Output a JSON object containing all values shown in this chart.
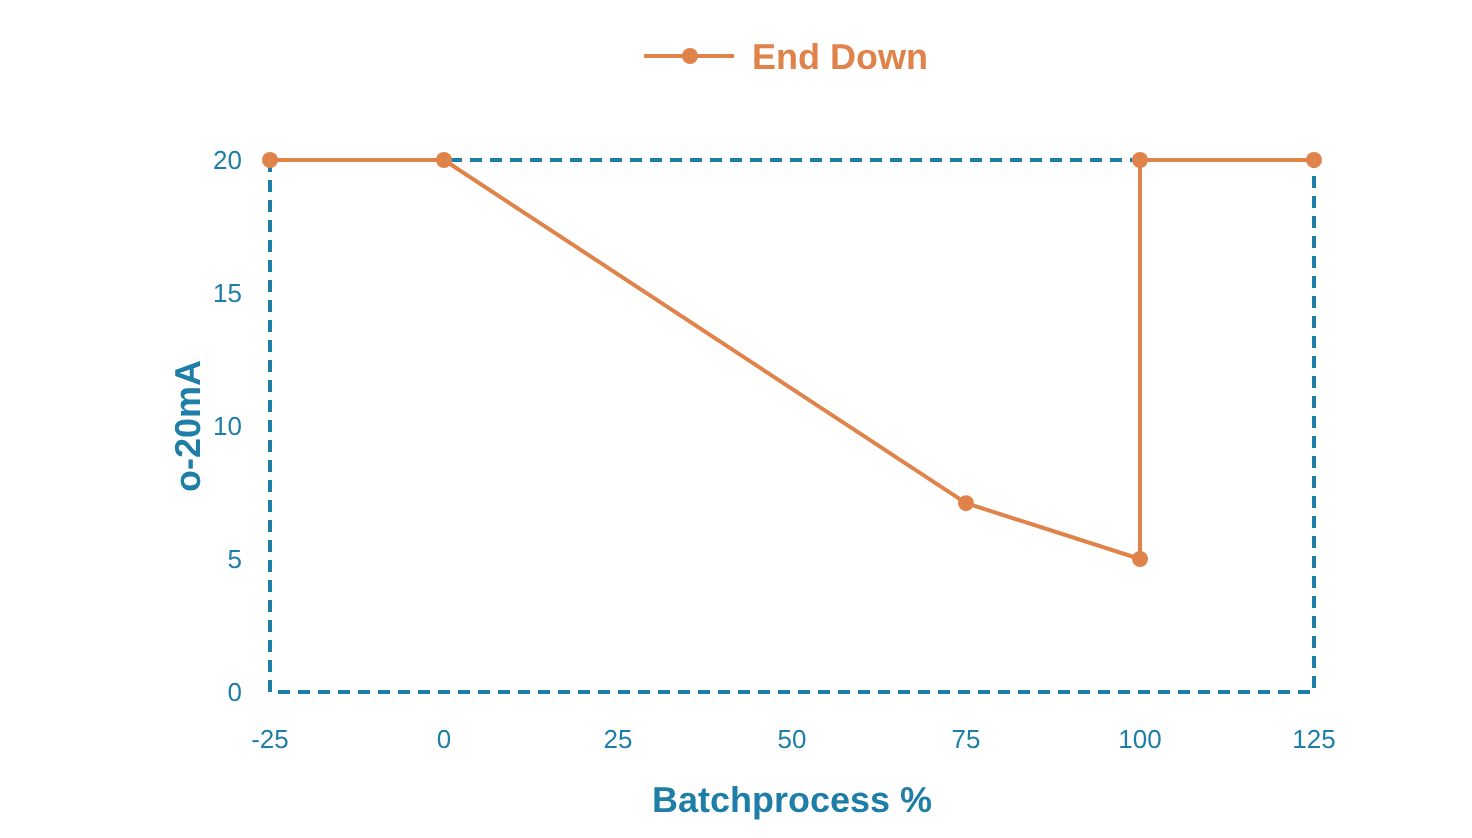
{
  "chart_data": {
    "type": "line",
    "xlabel": "Batchprocess %",
    "ylabel": "o-20mA",
    "x": [
      -25,
      0,
      75,
      100,
      100,
      125
    ],
    "series": [
      {
        "name": "End Down",
        "color": "#e0834a",
        "values": [
          20,
          20,
          7.1,
          5,
          20,
          20
        ]
      }
    ],
    "xlim": [
      -25,
      125
    ],
    "xticks": [
      -25,
      0,
      25,
      50,
      75,
      100,
      125
    ],
    "ylim": [
      0,
      20
    ],
    "yticks": [
      0,
      5,
      10,
      15,
      20
    ],
    "marker": "circle",
    "line_style": "solid",
    "legend": "top",
    "grid": false
  }
}
